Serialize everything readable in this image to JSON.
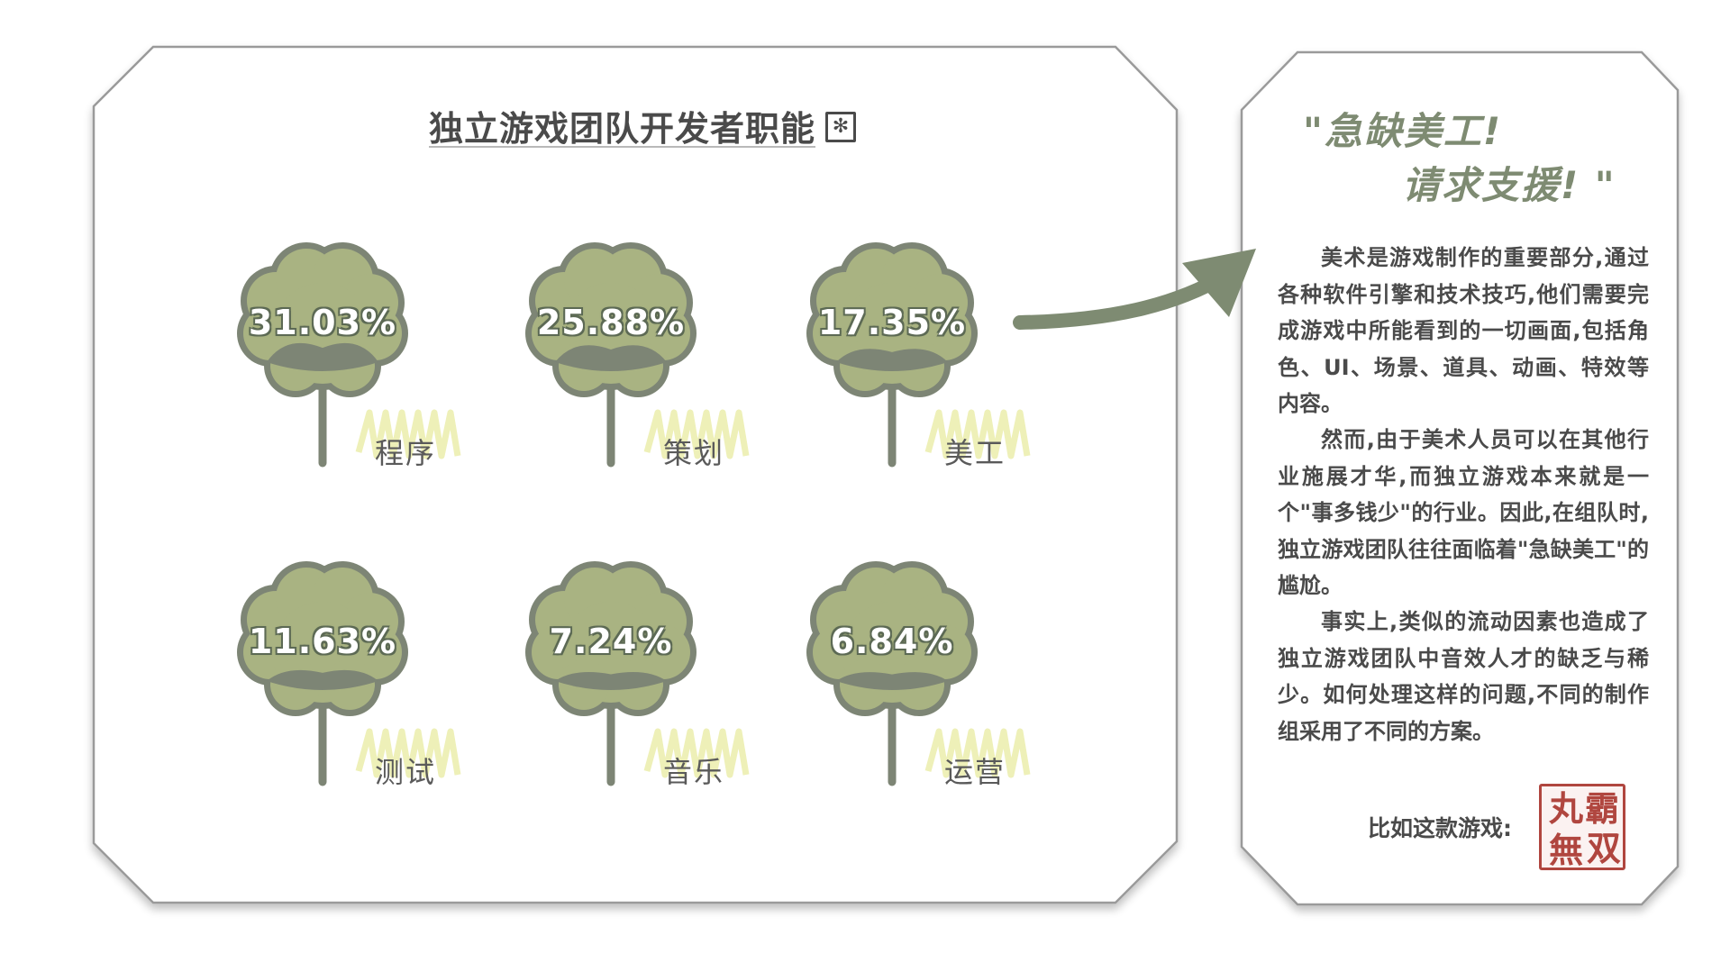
{
  "chart_data": {
    "type": "bar",
    "title": "独立游戏团队开发者职能",
    "categories": [
      "程序",
      "策划",
      "美工",
      "测试",
      "音乐",
      "运营"
    ],
    "values": [
      31.03,
      25.88,
      17.35,
      11.63,
      7.24,
      6.84
    ],
    "value_labels": [
      "31.03%",
      "25.88%",
      "17.35%",
      "11.63%",
      "7.24%",
      "6.84%"
    ],
    "unit": "%"
  },
  "title_icon": "✻",
  "colors": {
    "flower_fill": "#a9b382",
    "flower_stroke": "#7d8575",
    "card_border": "#9a9a9a",
    "accent_green": "#7e8b72",
    "highlight_yellow": "#eef0b8",
    "seal_red": "#b0463f"
  },
  "side_panel": {
    "quote_line1": "\"急缺美工!",
    "quote_line2": "请求支援! \"",
    "paragraphs": [
      "美术是游戏制作的重要部分,通过各种软件引擎和技术技巧,他们需要完成游戏中所能看到的一切画面,包括角色、UI、场景、道具、动画、特效等内容。",
      "然而,由于美术人员可以在其他行业施展才华,而独立游戏本来就是一个\"事多钱少\"的行业。因此,在组队时,独立游戏团队往往面临着\"急缺美工\"的尴尬。",
      "事实上,类似的流动因素也造成了独立游戏团队中音效人才的缺乏与稀少。如何处理这样的问题,不同的制作组采用了不同的方案。"
    ],
    "example_label": "比如这款游戏:",
    "seal": {
      "chars": [
        "丸",
        "霸",
        "無",
        "双"
      ],
      "icon": "game-logo-seal"
    }
  }
}
